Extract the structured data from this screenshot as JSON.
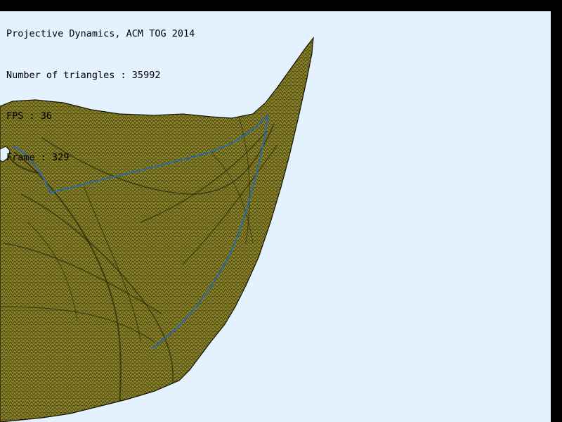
{
  "hud": {
    "title": "Projective Dynamics, ACM TOG 2014",
    "triangles": "Number of triangles : 35992",
    "fps": "FPS : 36",
    "frame": "Frame : 329"
  },
  "colors": {
    "background": "#e4f2ff",
    "border": "#000000",
    "cloth_fill": "#8a8328",
    "mesh_line": "#1e1c06",
    "seam": "#2a6aa8"
  },
  "icons": {
    "cloth": "cloth-mesh-render"
  }
}
